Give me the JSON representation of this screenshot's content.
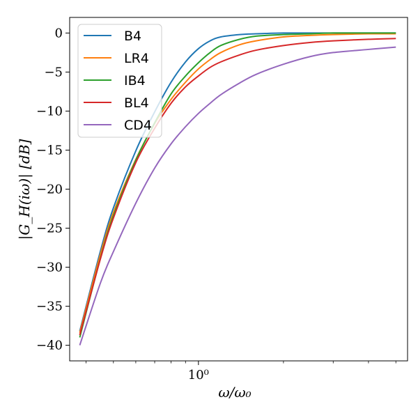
{
  "chart_data": {
    "type": "line",
    "xscale": "log",
    "xlabel": "ω/ω₀",
    "ylabel": "|G_H(iω)| [dB]",
    "xlim": [
      0.35,
      5.5
    ],
    "ylim": [
      -42,
      2
    ],
    "x_major_ticks": [
      {
        "value": 1,
        "label": "10⁰"
      }
    ],
    "x_minor_ticks": [
      0.4,
      0.5,
      0.6,
      0.7,
      0.8,
      0.9,
      2,
      3,
      4,
      5
    ],
    "y_ticks": [
      0,
      -5,
      -10,
      -15,
      -20,
      -25,
      -30,
      -35,
      -40
    ],
    "y_tick_labels": [
      "0",
      "−5",
      "−10",
      "−15",
      "−20",
      "−25",
      "−30",
      "−35",
      "−40"
    ],
    "grid": false,
    "legend_placement": "top-left",
    "series": [
      {
        "name": "B4",
        "color": "#1f77b4",
        "x": [
          0.38,
          0.45,
          0.5,
          0.6,
          0.7,
          0.8,
          0.9,
          1.0,
          1.1,
          1.2,
          1.4,
          1.6,
          2.0,
          2.5,
          3.0,
          4.0,
          5.0
        ],
        "y": [
          -38.2,
          -27.9,
          -22.4,
          -15.1,
          -10.1,
          -6.3,
          -3.7,
          -2.0,
          -1.0,
          -0.5,
          -0.2,
          -0.1,
          0.0,
          0.0,
          0.0,
          0.0,
          0.0
        ]
      },
      {
        "name": "LR4",
        "color": "#ff7f0e",
        "x": [
          0.38,
          0.45,
          0.5,
          0.6,
          0.7,
          0.8,
          0.9,
          1.0,
          1.1,
          1.2,
          1.4,
          1.6,
          2.0,
          2.5,
          3.0,
          4.0,
          5.0
        ],
        "y": [
          -38.4,
          -28.3,
          -23.0,
          -16.2,
          -11.6,
          -8.5,
          -6.3,
          -4.6,
          -3.4,
          -2.5,
          -1.5,
          -1.0,
          -0.5,
          -0.3,
          -0.2,
          -0.1,
          -0.1
        ]
      },
      {
        "name": "IB4",
        "color": "#2ca02c",
        "x": [
          0.38,
          0.45,
          0.5,
          0.6,
          0.7,
          0.8,
          0.9,
          1.0,
          1.1,
          1.2,
          1.4,
          1.6,
          2.0,
          2.5,
          3.0,
          4.0,
          5.0
        ],
        "y": [
          -39.0,
          -28.8,
          -23.4,
          -16.3,
          -11.5,
          -7.8,
          -5.5,
          -3.8,
          -2.5,
          -1.6,
          -0.8,
          -0.4,
          -0.2,
          -0.1,
          0.0,
          0.0,
          0.0
        ]
      },
      {
        "name": "BL4",
        "color": "#d62728",
        "x": [
          0.38,
          0.45,
          0.5,
          0.6,
          0.7,
          0.8,
          0.9,
          1.0,
          1.1,
          1.2,
          1.4,
          1.6,
          2.0,
          2.5,
          3.0,
          4.0,
          5.0
        ],
        "y": [
          -38.7,
          -28.9,
          -23.7,
          -16.6,
          -12.2,
          -9.0,
          -6.9,
          -5.5,
          -4.4,
          -3.7,
          -2.8,
          -2.2,
          -1.6,
          -1.2,
          -1.0,
          -0.8,
          -0.7
        ]
      },
      {
        "name": "CD4",
        "color": "#9467bd",
        "x": [
          0.38,
          0.45,
          0.5,
          0.6,
          0.7,
          0.8,
          0.9,
          1.0,
          1.1,
          1.2,
          1.4,
          1.6,
          2.0,
          2.5,
          3.0,
          4.0,
          5.0
        ],
        "y": [
          -40.0,
          -32.0,
          -28.0,
          -21.8,
          -17.3,
          -14.2,
          -12.0,
          -10.3,
          -9.0,
          -7.9,
          -6.4,
          -5.3,
          -4.0,
          -3.0,
          -2.5,
          -2.1,
          -1.8
        ]
      }
    ]
  }
}
